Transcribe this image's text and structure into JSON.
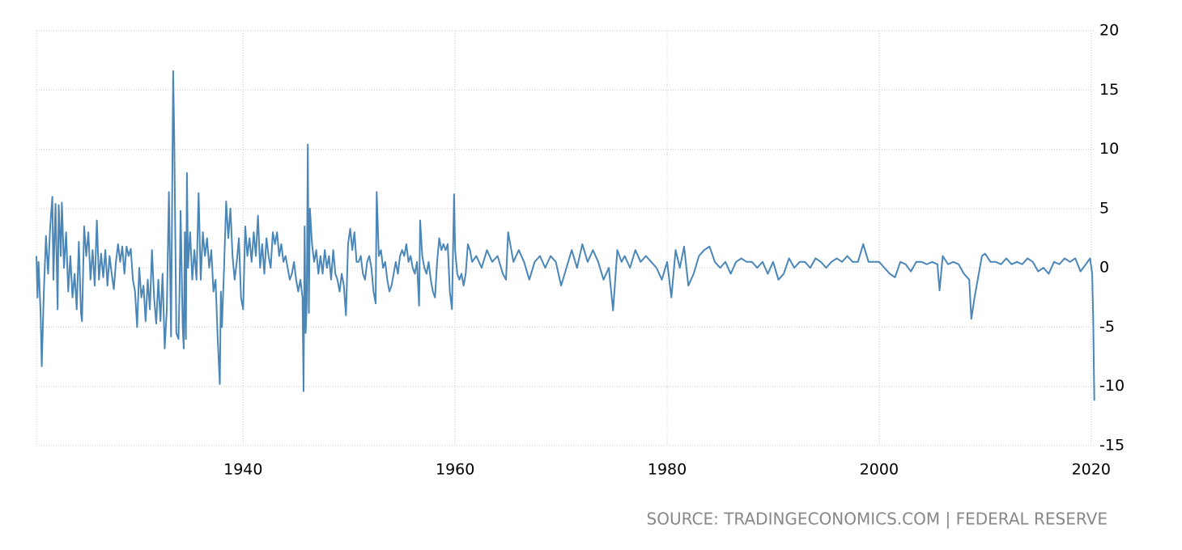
{
  "chart_data": {
    "type": "line",
    "source": "SOURCE: TRADINGECONOMICS.COM | FEDERAL RESERVE",
    "x": [
      1920.5,
      1920.6,
      1920.7,
      1920.9,
      1921.0,
      1921.2,
      1921.4,
      1921.6,
      1921.8,
      1922.0,
      1922.1,
      1922.3,
      1922.5,
      1922.6,
      1922.8,
      1922.9,
      1923.1,
      1923.3,
      1923.5,
      1923.7,
      1923.9,
      1924.1,
      1924.3,
      1924.5,
      1924.7,
      1924.8,
      1925.0,
      1925.2,
      1925.4,
      1925.6,
      1925.8,
      1926.0,
      1926.2,
      1926.4,
      1926.6,
      1926.8,
      1927.0,
      1927.2,
      1927.4,
      1927.6,
      1927.8,
      1928.0,
      1928.2,
      1928.4,
      1928.6,
      1928.8,
      1929.0,
      1929.2,
      1929.4,
      1929.6,
      1929.8,
      1930.0,
      1930.2,
      1930.4,
      1930.6,
      1930.8,
      1931.0,
      1931.2,
      1931.4,
      1931.6,
      1931.8,
      1932.0,
      1932.2,
      1932.4,
      1932.6,
      1932.8,
      1933.0,
      1933.2,
      1933.4,
      1933.5,
      1933.7,
      1933.9,
      1934.0,
      1934.1,
      1934.3,
      1934.4,
      1934.5,
      1934.6,
      1934.7,
      1934.8,
      1935.0,
      1935.2,
      1935.4,
      1935.6,
      1935.8,
      1936.0,
      1936.2,
      1936.4,
      1936.6,
      1936.8,
      1937.0,
      1937.2,
      1937.4,
      1937.6,
      1937.8,
      1937.9,
      1938.0,
      1938.2,
      1938.4,
      1938.6,
      1938.8,
      1939.0,
      1939.2,
      1939.4,
      1939.6,
      1939.8,
      1940.0,
      1940.2,
      1940.4,
      1940.6,
      1940.8,
      1941.0,
      1941.2,
      1941.4,
      1941.6,
      1941.8,
      1942.0,
      1942.2,
      1942.4,
      1942.6,
      1942.8,
      1943.0,
      1943.2,
      1943.4,
      1943.6,
      1943.8,
      1944.0,
      1944.2,
      1944.4,
      1944.6,
      1944.8,
      1945.0,
      1945.2,
      1945.4,
      1945.6,
      1945.7,
      1945.8,
      1945.9,
      1946.0,
      1946.1,
      1946.2,
      1946.3,
      1946.5,
      1946.7,
      1946.9,
      1947.1,
      1947.3,
      1947.5,
      1947.7,
      1947.9,
      1948.1,
      1948.3,
      1948.5,
      1948.7,
      1948.9,
      1949.1,
      1949.3,
      1949.5,
      1949.7,
      1949.9,
      1950.1,
      1950.3,
      1950.5,
      1950.7,
      1950.9,
      1951.1,
      1951.3,
      1951.5,
      1951.7,
      1951.9,
      1952.1,
      1952.3,
      1952.5,
      1952.6,
      1952.8,
      1953.0,
      1953.2,
      1953.4,
      1953.6,
      1953.8,
      1954.0,
      1954.2,
      1954.4,
      1954.6,
      1954.8,
      1955.0,
      1955.2,
      1955.4,
      1955.6,
      1955.8,
      1956.0,
      1956.2,
      1956.4,
      1956.6,
      1956.7,
      1956.9,
      1957.1,
      1957.3,
      1957.5,
      1957.7,
      1957.9,
      1958.1,
      1958.3,
      1958.5,
      1958.7,
      1958.9,
      1959.1,
      1959.3,
      1959.5,
      1959.7,
      1959.9,
      1960.0,
      1960.2,
      1960.4,
      1960.6,
      1960.8,
      1961.0,
      1961.2,
      1961.4,
      1961.6,
      1962.0,
      1962.5,
      1963.0,
      1963.5,
      1964.0,
      1964.5,
      1964.8,
      1965.0,
      1965.5,
      1966.0,
      1966.5,
      1967.0,
      1967.5,
      1968.0,
      1968.5,
      1969.0,
      1969.5,
      1970.0,
      1970.5,
      1971.0,
      1971.5,
      1972.0,
      1972.5,
      1973.0,
      1973.5,
      1974.0,
      1974.5,
      1974.9,
      1975.3,
      1975.7,
      1976.0,
      1976.5,
      1977.0,
      1977.5,
      1978.0,
      1978.5,
      1979.0,
      1979.5,
      1980.0,
      1980.4,
      1980.8,
      1981.2,
      1981.6,
      1982.0,
      1982.5,
      1983.0,
      1983.5,
      1984.0,
      1984.5,
      1985.0,
      1985.5,
      1986.0,
      1986.5,
      1987.0,
      1987.5,
      1988.0,
      1988.5,
      1989.0,
      1989.5,
      1990.0,
      1990.5,
      1991.0,
      1991.5,
      1992.0,
      1992.5,
      1993.0,
      1993.5,
      1994.0,
      1994.5,
      1995.0,
      1995.5,
      1996.0,
      1996.5,
      1997.0,
      1997.5,
      1998.0,
      1998.5,
      1999.0,
      1999.5,
      2000.0,
      2000.5,
      2001.0,
      2001.5,
      2002.0,
      2002.5,
      2003.0,
      2003.5,
      2004.0,
      2004.5,
      2005.0,
      2005.5,
      2005.7,
      2006.0,
      2006.5,
      2007.0,
      2007.5,
      2008.0,
      2008.5,
      2008.7,
      2009.0,
      2009.3,
      2009.7,
      2010.0,
      2010.5,
      2011.0,
      2011.5,
      2012.0,
      2012.5,
      2013.0,
      2013.5,
      2014.0,
      2014.5,
      2015.0,
      2015.5,
      2016.0,
      2016.5,
      2017.0,
      2017.5,
      2018.0,
      2018.5,
      2019.0,
      2019.5,
      2019.9,
      2020.1,
      2020.2,
      2020.3
    ],
    "series": [
      {
        "color": "#4a86b8",
        "values": [
          1.0,
          -2.5,
          0.5,
          -4.0,
          -8.3,
          -2.0,
          2.7,
          -0.5,
          3.5,
          6.0,
          -1.0,
          5.4,
          -3.5,
          5.3,
          1.0,
          5.5,
          0.0,
          3.0,
          -2.0,
          1.0,
          -2.5,
          -0.5,
          -3.5,
          2.2,
          -3.8,
          -4.5,
          3.5,
          1.0,
          3.0,
          -1.0,
          1.5,
          -1.5,
          4.0,
          -1.0,
          1.2,
          -0.8,
          1.5,
          -1.5,
          1.0,
          -0.5,
          -1.8,
          0.5,
          2.0,
          0.5,
          1.8,
          -0.5,
          1.8,
          1.0,
          1.6,
          -1.0,
          -2.0,
          -5.0,
          0.0,
          -2.5,
          -1.5,
          -4.5,
          -1.0,
          -3.5,
          1.5,
          -2.5,
          -4.7,
          -1.0,
          -4.5,
          -0.5,
          -6.8,
          -3.5,
          6.4,
          -5.8,
          16.6,
          11.0,
          -5.5,
          -6.0,
          -2.0,
          4.8,
          -5.0,
          -6.8,
          3.0,
          -6.0,
          8.0,
          0.0,
          3.0,
          -1.0,
          1.5,
          -1.0,
          6.3,
          -1.0,
          3.0,
          1.0,
          2.5,
          0.0,
          1.5,
          -2.0,
          -1.0,
          -6.0,
          -9.8,
          -2.0,
          -5.0,
          0.0,
          5.6,
          2.5,
          5.0,
          1.0,
          -1.0,
          0.5,
          2.5,
          -2.5,
          -3.5,
          3.5,
          1.0,
          2.5,
          0.5,
          3.0,
          1.0,
          4.4,
          0.0,
          2.0,
          -0.5,
          2.5,
          1.0,
          0.0,
          3.0,
          2.0,
          3.0,
          1.0,
          2.0,
          0.5,
          1.0,
          0.0,
          -1.0,
          -0.5,
          0.5,
          -1.0,
          -2.0,
          -1.0,
          -2.5,
          -10.4,
          3.5,
          -5.5,
          -3.0,
          10.4,
          -3.8,
          5.0,
          2.0,
          0.5,
          1.5,
          -0.5,
          1.0,
          -0.5,
          1.5,
          0.0,
          1.0,
          -1.0,
          1.5,
          -0.5,
          -1.0,
          -2.0,
          -0.5,
          -1.5,
          -4.0,
          2.0,
          3.3,
          1.5,
          3.0,
          0.5,
          0.5,
          1.0,
          -0.5,
          -1.0,
          0.5,
          1.0,
          0.0,
          -2.0,
          -3.0,
          6.4,
          1.0,
          1.5,
          0.0,
          0.5,
          -1.0,
          -2.0,
          -1.5,
          -0.5,
          0.5,
          -0.5,
          1.0,
          1.5,
          1.0,
          2.0,
          0.5,
          1.0,
          0.0,
          -0.5,
          0.5,
          -3.2,
          4.0,
          1.0,
          0.0,
          -0.5,
          0.5,
          -1.0,
          -2.0,
          -2.5,
          0.5,
          2.5,
          1.5,
          2.0,
          1.5,
          2.0,
          -2.0,
          -3.5,
          6.2,
          1.5,
          -0.5,
          -1.0,
          -0.5,
          -1.5,
          -0.5,
          2.0,
          1.5,
          0.5,
          1.0,
          0.0,
          1.5,
          0.5,
          1.0,
          -0.5,
          -1.0,
          3.0,
          0.5,
          1.5,
          0.5,
          -1.0,
          0.5,
          1.0,
          0.0,
          1.0,
          0.5,
          -1.5,
          0.0,
          1.5,
          0.0,
          2.0,
          0.5,
          1.5,
          0.5,
          -1.0,
          0.0,
          -3.6,
          1.5,
          0.5,
          1.0,
          0.0,
          1.5,
          0.5,
          1.0,
          0.5,
          0.0,
          -1.0,
          0.5,
          -2.5,
          1.5,
          0.0,
          1.8,
          -1.5,
          -0.5,
          1.0,
          1.5,
          1.8,
          0.5,
          0.0,
          0.5,
          -0.5,
          0.5,
          0.8,
          0.5,
          0.5,
          0.0,
          0.5,
          -0.5,
          0.5,
          -1.0,
          -0.5,
          0.8,
          0.0,
          0.5,
          0.5,
          0.0,
          0.8,
          0.5,
          0.0,
          0.5,
          0.8,
          0.5,
          1.0,
          0.5,
          0.5,
          2.0,
          0.5,
          0.5,
          0.5,
          0.0,
          -0.5,
          -0.8,
          0.5,
          0.3,
          -0.3,
          0.5,
          0.5,
          0.3,
          0.5,
          0.3,
          -1.9,
          1.0,
          0.3,
          0.5,
          0.3,
          -0.5,
          -1.0,
          -4.3,
          -2.5,
          -1.0,
          1.0,
          1.2,
          0.5,
          0.5,
          0.3,
          0.8,
          0.3,
          0.5,
          0.3,
          0.8,
          0.5,
          -0.3,
          0.0,
          -0.5,
          0.5,
          0.3,
          0.8,
          0.5,
          0.8,
          -0.3,
          0.3,
          0.8,
          -0.5,
          -4.5,
          -11.2
        ]
      }
    ],
    "xlim": [
      1920.5,
      2020.4
    ],
    "xticks": [
      1940,
      1960,
      1980,
      2000,
      2020
    ],
    "ylim": [
      -15,
      20
    ],
    "yticks": [
      -15,
      -10,
      -5,
      0,
      5,
      10,
      15,
      20
    ],
    "grid": true
  }
}
